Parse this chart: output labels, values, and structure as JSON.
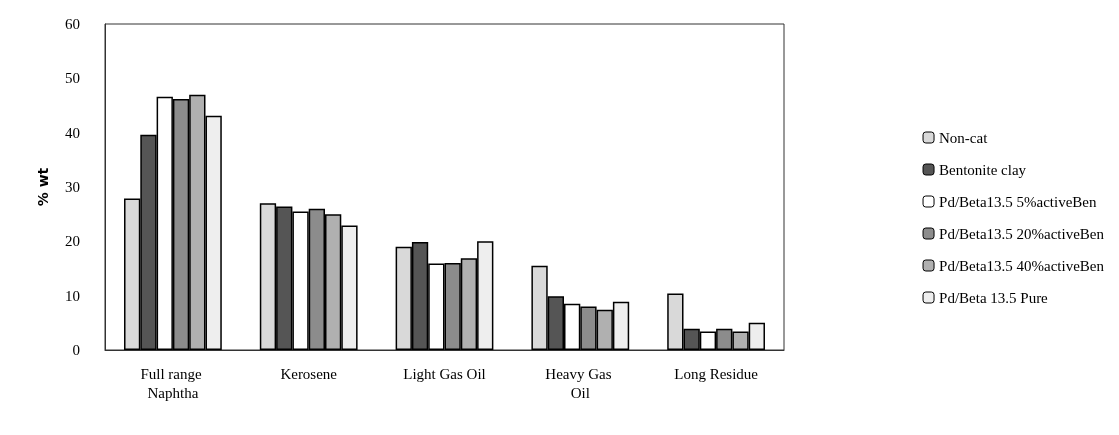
{
  "chart_data": {
    "type": "bar",
    "ylabel": "% wt",
    "categories": [
      "Full range Naphtha",
      "Kerosene",
      "Light Gas Oil",
      "Heavy Gas Oil",
      "Long Residue"
    ],
    "series": [
      {
        "name": "Non-cat",
        "color": "#d9d9d9",
        "values": [
          27.9,
          27.0,
          19.0,
          15.5,
          10.4
        ]
      },
      {
        "name": "Bentonite clay",
        "color": "#555555",
        "values": [
          39.6,
          26.4,
          19.9,
          9.9,
          3.9
        ]
      },
      {
        "name": "Pd/Beta13.5 5%activeBen",
        "color": "#ffffff",
        "values": [
          46.6,
          25.5,
          15.9,
          8.5,
          3.4
        ]
      },
      {
        "name": "Pd/Beta13.5 20%activeBen",
        "color": "#8c8c8c",
        "values": [
          46.2,
          26.0,
          16.0,
          8.0,
          3.9
        ]
      },
      {
        "name": "Pd/Beta13.5 40%activeBen",
        "color": "#b0b0b0",
        "values": [
          47.0,
          25.0,
          16.9,
          7.4,
          3.4
        ]
      },
      {
        "name": "Pd/Beta 13.5 Pure",
        "color": "#eeeeee",
        "values": [
          43.1,
          22.9,
          20.0,
          8.9,
          5.0
        ]
      }
    ],
    "ylim": [
      0,
      60
    ],
    "yticks": [
      0,
      10,
      20,
      30,
      40,
      50,
      60
    ],
    "grid": false,
    "legend": "right"
  }
}
